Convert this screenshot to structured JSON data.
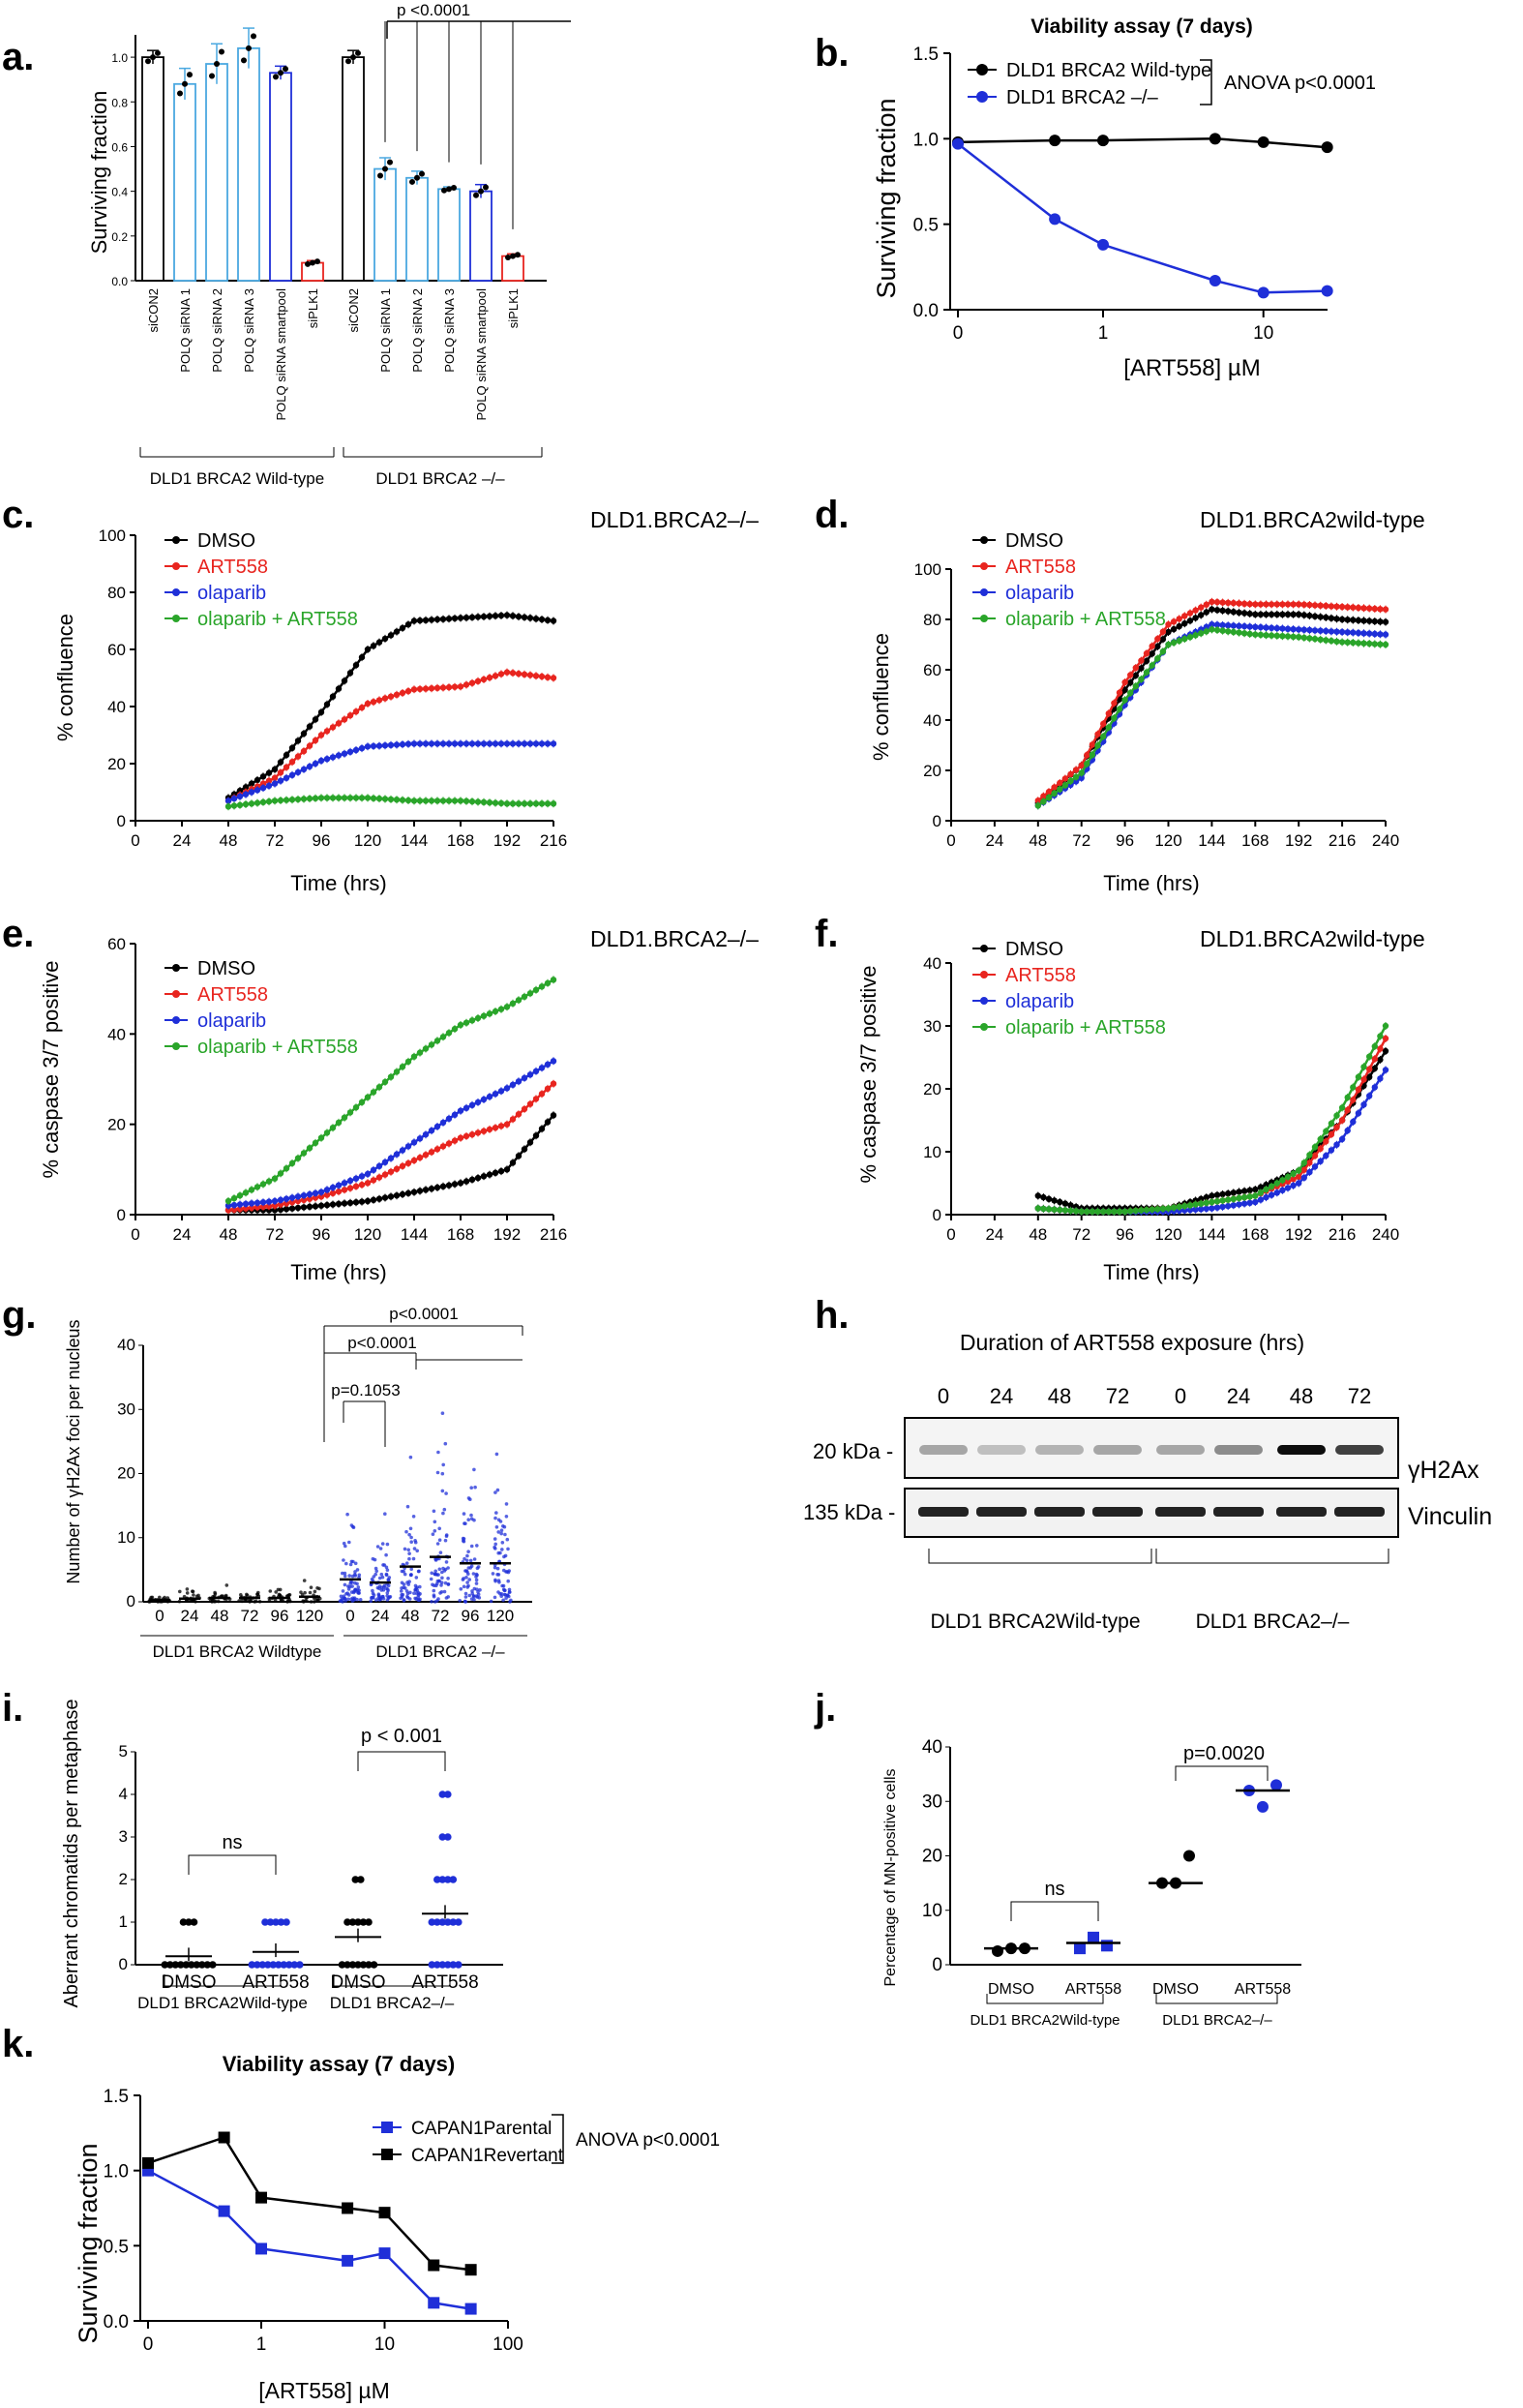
{
  "figure": {
    "colors": {
      "black": "#000000",
      "red": "#e8251f",
      "blue": "#1f2fd8",
      "green": "#2aa52a",
      "lightblue": "#4aa8e0"
    },
    "panels": {
      "a": {
        "label": "a.",
        "ylabel": "Surviving fraction",
        "yticks": [
          "0.0",
          "0.2",
          "0.4",
          "0.6",
          "0.8",
          "1.0"
        ],
        "p": "p <0.0001",
        "group1": "DLD1 BRCA2 Wild-type",
        "group2": "DLD1 BRCA2 –/–"
      },
      "b": {
        "label": "b.",
        "title": "Viability  assay (7 days)",
        "ylabel": "Surviving fraction",
        "xlabel": "[ART558] µM",
        "legend": [
          "DLD1 BRCA2 Wild-type",
          "DLD1 BRCA2 –/–"
        ],
        "anova": "ANOVA p<0.0001",
        "yticks": [
          "0.0",
          "0.5",
          "1.0",
          "1.5"
        ],
        "xticks": [
          "0",
          "1",
          "10"
        ]
      },
      "c": {
        "label": "c.",
        "title": "DLD1.BRCA2–/–",
        "ylabel": "% confluence",
        "xlabel": "Time (hrs)",
        "legend": [
          "DMSO",
          "ART558",
          "olaparib",
          "olaparib + ART558"
        ],
        "yticks": [
          "0",
          "20",
          "40",
          "60",
          "80",
          "100"
        ],
        "xticks": [
          "0",
          "24",
          "48",
          "72",
          "96",
          "120",
          "144",
          "168",
          "192",
          "216"
        ]
      },
      "d": {
        "label": "d.",
        "title": "DLD1.BRCA2wild-type",
        "ylabel": "% confluence",
        "xlabel": "Time (hrs)",
        "legend": [
          "DMSO",
          "ART558",
          "olaparib",
          "olaparib + ART558"
        ],
        "yticks": [
          "0",
          "20",
          "40",
          "60",
          "80",
          "100"
        ],
        "xticks": [
          "0",
          "24",
          "48",
          "72",
          "96",
          "120",
          "144",
          "168",
          "192",
          "216",
          "240"
        ]
      },
      "e": {
        "label": "e.",
        "title": "DLD1.BRCA2–/–",
        "ylabel": "% caspase 3/7 positive",
        "xlabel": "Time (hrs)",
        "legend": [
          "DMSO",
          "ART558",
          "olaparib",
          "olaparib + ART558"
        ],
        "yticks": [
          "0",
          "20",
          "40",
          "60"
        ],
        "xticks": [
          "0",
          "24",
          "48",
          "72",
          "96",
          "120",
          "144",
          "168",
          "192",
          "216"
        ]
      },
      "f": {
        "label": "f.",
        "title": "DLD1.BRCA2wild-type",
        "ylabel": "% caspase 3/7 positive",
        "xlabel": "Time (hrs)",
        "legend": [
          "DMSO",
          "ART558",
          "olaparib",
          "olaparib + ART558"
        ],
        "yticks": [
          "0",
          "10",
          "20",
          "30",
          "40"
        ],
        "xticks": [
          "0",
          "24",
          "48",
          "72",
          "96",
          "120",
          "144",
          "168",
          "192",
          "216",
          "240"
        ]
      },
      "g": {
        "label": "g.",
        "ylabel": "Number of γH2Ax foci per nucleus",
        "yticks": [
          "0",
          "10",
          "20",
          "30",
          "40"
        ],
        "xticks": [
          "0",
          "24",
          "48",
          "72",
          "96",
          "120",
          "0",
          "24",
          "48",
          "72",
          "96",
          "120"
        ],
        "p1": "p=0.1053",
        "p2": "p<0.0001",
        "p3": "p<0.0001",
        "group1": "DLD1 BRCA2 Wildtype",
        "group2": "DLD1 BRCA2 –/–"
      },
      "h": {
        "label": "h.",
        "title": "Duration of ART558 exposure (hrs)",
        "lanes": [
          "0",
          "24",
          "48",
          "72",
          "0",
          "24",
          "48",
          "72"
        ],
        "mw1": "20 kDa -",
        "mw2": "135 kDa -",
        "band1": "γH2Ax",
        "band2": "Vinculin",
        "group1": "DLD1 BRCA2Wild-type",
        "group2": "DLD1 BRCA2–/–"
      },
      "i": {
        "label": "i.",
        "ylabel": "Aberrant chromatids per metaphase",
        "yticks": [
          "0",
          "1",
          "2",
          "3",
          "4",
          "5"
        ],
        "xticks": [
          "DMSO",
          "ART558",
          "DMSO",
          "ART558"
        ],
        "ns": "ns",
        "p": "p < 0.001",
        "group1": "DLD1  BRCA2Wild-type",
        "group2": "DLD1 BRCA2–/–"
      },
      "j": {
        "label": "j.",
        "ylabel": "Percentage of MN-positive cells",
        "yticks": [
          "0",
          "10",
          "20",
          "30",
          "40"
        ],
        "xticks": [
          "DMSO",
          "ART558",
          "DMSO",
          "ART558"
        ],
        "ns": "ns",
        "p": "p=0.0020",
        "group1": "DLD1  BRCA2Wild-type",
        "group2": "DLD1 BRCA2–/–"
      },
      "k": {
        "label": "k.",
        "title": "Viability  assay (7 days)",
        "ylabel": "Surviving fraction",
        "xlabel": "[ART558] µM",
        "legend": [
          "CAPAN1Parental",
          "CAPAN1Revertant"
        ],
        "anova": "ANOVA p<0.0001",
        "yticks": [
          "0.0",
          "0.5",
          "1.0",
          "1.5"
        ],
        "xticks": [
          "0",
          "1",
          "10",
          "100"
        ]
      }
    }
  },
  "chart_data": [
    {
      "panel": "a",
      "type": "bar",
      "ylim": [
        0,
        1.1
      ],
      "categories": [
        "siCON2",
        "POLQ siRNA 1",
        "POLQ siRNA 2",
        "POLQ siRNA 3",
        "POLQ siRNA smartpool",
        "siPLK1",
        "siCON2",
        "POLQ siRNA 1",
        "POLQ siRNA 2",
        "POLQ siRNA 3",
        "POLQ siRNA smartpool",
        "siPLK1"
      ],
      "values": [
        1.0,
        0.88,
        0.97,
        1.04,
        0.93,
        0.08,
        1.0,
        0.5,
        0.46,
        0.41,
        0.4,
        0.11
      ],
      "errors": [
        0.03,
        0.07,
        0.09,
        0.09,
        0.03,
        0.01,
        0.03,
        0.05,
        0.03,
        0.01,
        0.03,
        0.01
      ]
    },
    {
      "panel": "b",
      "type": "line",
      "xscale": "log",
      "ylim": [
        0,
        1.5
      ],
      "series": [
        {
          "name": "DLD1 BRCA2 Wild-type",
          "x": [
            0,
            0.5,
            1,
            5,
            10,
            25
          ],
          "y": [
            0.98,
            0.99,
            0.99,
            1.0,
            0.98,
            0.95
          ]
        },
        {
          "name": "DLD1 BRCA2 –/–",
          "x": [
            0,
            0.5,
            1,
            5,
            10,
            25
          ],
          "y": [
            0.97,
            0.53,
            0.38,
            0.17,
            0.1,
            0.11
          ]
        }
      ]
    },
    {
      "panel": "c",
      "type": "line",
      "xlim": [
        0,
        216
      ],
      "ylim": [
        0,
        100
      ],
      "series": [
        {
          "name": "DMSO",
          "x": [
            48,
            72,
            96,
            120,
            144,
            168,
            192,
            216
          ],
          "y": [
            8,
            18,
            38,
            60,
            70,
            71,
            72,
            70
          ]
        },
        {
          "name": "ART558",
          "x": [
            48,
            72,
            96,
            120,
            144,
            168,
            192,
            216
          ],
          "y": [
            7,
            15,
            30,
            41,
            46,
            47,
            52,
            50
          ]
        },
        {
          "name": "olaparib",
          "x": [
            48,
            72,
            96,
            120,
            144,
            168,
            192,
            216
          ],
          "y": [
            7,
            13,
            21,
            26,
            27,
            27,
            27,
            27
          ]
        },
        {
          "name": "olaparib + ART558",
          "x": [
            48,
            72,
            96,
            120,
            144,
            168,
            192,
            216
          ],
          "y": [
            5,
            7,
            8,
            8,
            7,
            7,
            6,
            6
          ]
        }
      ]
    },
    {
      "panel": "d",
      "type": "line",
      "xlim": [
        0,
        240
      ],
      "ylim": [
        0,
        100
      ],
      "series": [
        {
          "name": "DMSO",
          "x": [
            48,
            72,
            96,
            120,
            144,
            168,
            192,
            216,
            240
          ],
          "y": [
            7,
            22,
            52,
            75,
            84,
            82,
            82,
            80,
            79
          ]
        },
        {
          "name": "ART558",
          "x": [
            48,
            72,
            96,
            120,
            144,
            168,
            192,
            216,
            240
          ],
          "y": [
            8,
            22,
            55,
            78,
            87,
            86,
            86,
            85,
            84
          ]
        },
        {
          "name": "olaparib",
          "x": [
            48,
            72,
            96,
            120,
            144,
            168,
            192,
            216,
            240
          ],
          "y": [
            6,
            17,
            46,
            70,
            78,
            77,
            76,
            75,
            74
          ]
        },
        {
          "name": "olaparib + ART558",
          "x": [
            48,
            72,
            96,
            120,
            144,
            168,
            192,
            216,
            240
          ],
          "y": [
            6,
            19,
            48,
            70,
            76,
            74,
            73,
            71,
            70
          ]
        }
      ]
    },
    {
      "panel": "e",
      "type": "line",
      "xlim": [
        0,
        216
      ],
      "ylim": [
        0,
        60
      ],
      "series": [
        {
          "name": "DMSO",
          "x": [
            48,
            72,
            96,
            120,
            144,
            168,
            192,
            216
          ],
          "y": [
            1,
            1,
            2,
            3,
            5,
            7,
            10,
            22
          ]
        },
        {
          "name": "ART558",
          "x": [
            48,
            72,
            96,
            120,
            144,
            168,
            192,
            216
          ],
          "y": [
            1,
            2,
            4,
            7,
            12,
            17,
            20,
            29
          ]
        },
        {
          "name": "olaparib",
          "x": [
            48,
            72,
            96,
            120,
            144,
            168,
            192,
            216
          ],
          "y": [
            2,
            3,
            5,
            9,
            16,
            23,
            28,
            34
          ]
        },
        {
          "name": "olaparib + ART558",
          "x": [
            48,
            72,
            96,
            120,
            144,
            168,
            192,
            216
          ],
          "y": [
            3,
            8,
            17,
            26,
            35,
            42,
            46,
            52
          ]
        }
      ]
    },
    {
      "panel": "f",
      "type": "line",
      "xlim": [
        0,
        240
      ],
      "ylim": [
        0,
        40
      ],
      "series": [
        {
          "name": "DMSO",
          "x": [
            48,
            72,
            96,
            120,
            144,
            168,
            192,
            216,
            240
          ],
          "y": [
            3,
            1,
            1,
            1,
            3,
            4,
            7,
            15,
            26
          ]
        },
        {
          "name": "ART558",
          "x": [
            48,
            72,
            96,
            120,
            144,
            168,
            192,
            216,
            240
          ],
          "y": [
            1,
            0.5,
            0.5,
            1,
            2,
            3,
            6,
            15,
            28
          ]
        },
        {
          "name": "olaparib",
          "x": [
            48,
            72,
            96,
            120,
            144,
            168,
            192,
            216,
            240
          ],
          "y": [
            1,
            0.5,
            0.5,
            0.5,
            1,
            2,
            5,
            12,
            23
          ]
        },
        {
          "name": "olaparib + ART558",
          "x": [
            48,
            72,
            96,
            120,
            144,
            168,
            192,
            216,
            240
          ],
          "y": [
            1,
            0.5,
            0.5,
            1,
            2,
            3,
            7,
            17,
            30
          ]
        }
      ]
    },
    {
      "panel": "g",
      "type": "scatter",
      "ylim": [
        0,
        40
      ],
      "categories": [
        "0",
        "24",
        "48",
        "72",
        "96",
        "120",
        "0",
        "24",
        "48",
        "72",
        "96",
        "120"
      ],
      "means": [
        0.3,
        0.5,
        0.6,
        0.6,
        0.6,
        0.8,
        3.5,
        3,
        5.5,
        7,
        6,
        6
      ]
    },
    {
      "panel": "i",
      "type": "scatter",
      "ylim": [
        0,
        5
      ],
      "categories": [
        "DMSO",
        "ART558",
        "DMSO",
        "ART558"
      ],
      "means": [
        0.2,
        0.3,
        0.65,
        1.2
      ]
    },
    {
      "panel": "j",
      "type": "scatter",
      "ylim": [
        0,
        40
      ],
      "categories": [
        "DMSO",
        "ART558",
        "DMSO",
        "ART558"
      ],
      "points": [
        [
          2.5,
          3,
          3
        ],
        [
          3,
          5,
          3.5
        ],
        [
          15,
          15,
          20
        ],
        [
          32,
          29,
          33
        ]
      ],
      "means": [
        3,
        4,
        15,
        32
      ]
    },
    {
      "panel": "k",
      "type": "line",
      "xscale": "log",
      "ylim": [
        0,
        1.5
      ],
      "series": [
        {
          "name": "CAPAN1Parental",
          "x": [
            0,
            0.5,
            1,
            5,
            10,
            25,
            50
          ],
          "y": [
            1.0,
            0.73,
            0.48,
            0.4,
            0.45,
            0.12,
            0.08
          ]
        },
        {
          "name": "CAPAN1Revertant",
          "x": [
            0,
            0.5,
            1,
            5,
            10,
            25,
            50
          ],
          "y": [
            1.05,
            1.22,
            0.82,
            0.75,
            0.72,
            0.37,
            0.34
          ]
        }
      ]
    }
  ]
}
